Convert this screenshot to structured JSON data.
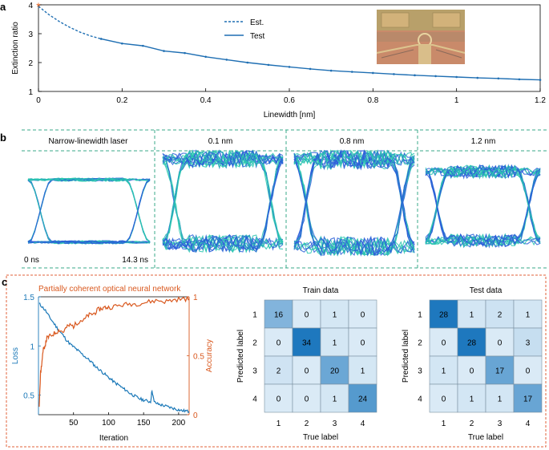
{
  "panel_a": {
    "letter": "a",
    "legend": [
      "Est.",
      "Test"
    ],
    "colors": {
      "line": "#1f6fb3",
      "marker_star": "#e8692a"
    }
  },
  "panel_b": {
    "letter": "b",
    "eye_labels": [
      "Narrow-linewidth laser",
      "0.1 nm",
      "0.8 nm",
      "1.2 nm"
    ],
    "time_start": "0 ns",
    "time_end": "14.3 ns",
    "colors": {
      "frame": "#3aaa8a",
      "trace_a": "#2a5fd8",
      "trace_b": "#2ac5b0"
    }
  },
  "panel_c": {
    "letter": "c",
    "training_title": "Partially coherent optical neural network",
    "colors": {
      "loss": "#1a78b8",
      "accuracy": "#d9581e",
      "frame": "#e0603a"
    }
  },
  "chart_data": [
    {
      "type": "line",
      "title": "",
      "xlabel": "Linewidth [nm]",
      "ylabel": "Extinction ratio",
      "xlim": [
        0,
        1.2
      ],
      "ylim": [
        1,
        4
      ],
      "xticks": [
        0,
        0.2,
        0.4,
        0.6,
        0.8,
        1,
        1.2
      ],
      "xtick_labels": [
        "0",
        "0.2",
        "0.4",
        "0.6",
        "0.8",
        "1",
        "1.2"
      ],
      "yticks": [
        1,
        2,
        3,
        4
      ],
      "ytick_labels": [
        "1",
        "2",
        "3",
        "4"
      ],
      "series": [
        {
          "name": "Est.",
          "style": "dashed",
          "x": [
            0,
            0.025,
            0.05,
            0.075,
            0.1,
            0.125,
            0.15
          ],
          "y": [
            3.95,
            3.66,
            3.42,
            3.22,
            3.05,
            2.92,
            2.82
          ]
        },
        {
          "name": "Test",
          "style": "solid",
          "x": [
            0.15,
            0.2,
            0.25,
            0.3,
            0.35,
            0.4,
            0.45,
            0.5,
            0.55,
            0.6,
            0.65,
            0.7,
            0.75,
            0.8,
            0.85,
            0.9,
            0.95,
            1.0,
            1.05,
            1.1,
            1.15,
            1.2
          ],
          "y": [
            2.82,
            2.66,
            2.58,
            2.4,
            2.33,
            2.2,
            2.1,
            2.0,
            1.92,
            1.85,
            1.78,
            1.72,
            1.68,
            1.64,
            1.6,
            1.56,
            1.53,
            1.5,
            1.47,
            1.45,
            1.42,
            1.4
          ]
        }
      ]
    },
    {
      "type": "line",
      "title": "Partially coherent optical neural network",
      "xlabel": "Iteration",
      "ylabel": "Loss",
      "ylabel_right": "Accuracy",
      "xlim": [
        0,
        215
      ],
      "ylim": [
        0.3,
        1.5
      ],
      "ylim_right": [
        0,
        1
      ],
      "xticks": [
        50,
        100,
        150,
        200
      ],
      "xtick_labels": [
        "50",
        "100",
        "150",
        "200"
      ],
      "yticks": [
        0.5,
        1,
        1.5
      ],
      "ytick_labels": [
        "0.5",
        "1",
        "1.5"
      ],
      "yticks_right": [
        0,
        0.5,
        1
      ],
      "ytick_labels_right": [
        "0",
        "0.5",
        "1"
      ],
      "series": [
        {
          "name": "Loss",
          "axis": "left",
          "x": [
            1,
            5,
            10,
            15,
            20,
            25,
            30,
            35,
            40,
            45,
            50,
            55,
            60,
            65,
            70,
            75,
            80,
            85,
            90,
            95,
            100,
            105,
            110,
            115,
            120,
            125,
            130,
            135,
            140,
            145,
            150,
            155,
            160,
            162,
            165,
            170,
            175,
            180,
            185,
            190,
            195,
            200,
            205,
            210,
            215
          ],
          "y": [
            1.43,
            1.4,
            1.36,
            1.3,
            1.25,
            1.2,
            1.15,
            1.11,
            1.06,
            1.02,
            0.99,
            0.96,
            0.93,
            0.9,
            0.87,
            0.84,
            0.8,
            0.77,
            0.74,
            0.71,
            0.68,
            0.65,
            0.62,
            0.6,
            0.57,
            0.55,
            0.52,
            0.5,
            0.48,
            0.46,
            0.45,
            0.44,
            0.43,
            0.55,
            0.43,
            0.41,
            0.4,
            0.39,
            0.38,
            0.37,
            0.36,
            0.35,
            0.34,
            0.34,
            0.33
          ]
        },
        {
          "name": "Accuracy",
          "axis": "right",
          "x": [
            1,
            3,
            5,
            7,
            10,
            12,
            15,
            20,
            25,
            30,
            35,
            40,
            45,
            50,
            55,
            60,
            65,
            70,
            75,
            80,
            85,
            90,
            95,
            100,
            110,
            120,
            130,
            140,
            150,
            160,
            170,
            180,
            190,
            200,
            210,
            215
          ],
          "y": [
            0.08,
            0.35,
            0.45,
            0.55,
            0.6,
            0.65,
            0.66,
            0.68,
            0.7,
            0.72,
            0.7,
            0.74,
            0.76,
            0.75,
            0.78,
            0.8,
            0.8,
            0.84,
            0.85,
            0.86,
            0.89,
            0.9,
            0.91,
            0.91,
            0.92,
            0.93,
            0.94,
            0.94,
            0.95,
            0.96,
            0.97,
            0.96,
            0.97,
            0.98,
            0.98,
            0.98
          ]
        }
      ]
    },
    {
      "type": "heatmap",
      "title": "Train data",
      "xlabel": "True label",
      "ylabel": "Predicted label",
      "x_categories": [
        "1",
        "2",
        "3",
        "4"
      ],
      "y_categories": [
        "1",
        "2",
        "3",
        "4"
      ],
      "values": [
        [
          16,
          0,
          1,
          0
        ],
        [
          0,
          34,
          1,
          0
        ],
        [
          2,
          0,
          20,
          1
        ],
        [
          0,
          0,
          1,
          24
        ]
      ]
    },
    {
      "type": "heatmap",
      "title": "Test data",
      "xlabel": "True label",
      "ylabel": "Predicted label",
      "x_categories": [
        "1",
        "2",
        "3",
        "4"
      ],
      "y_categories": [
        "1",
        "2",
        "3",
        "4"
      ],
      "values": [
        [
          28,
          1,
          2,
          1
        ],
        [
          0,
          28,
          0,
          3
        ],
        [
          1,
          0,
          17,
          0
        ],
        [
          0,
          1,
          1,
          17
        ]
      ]
    }
  ]
}
